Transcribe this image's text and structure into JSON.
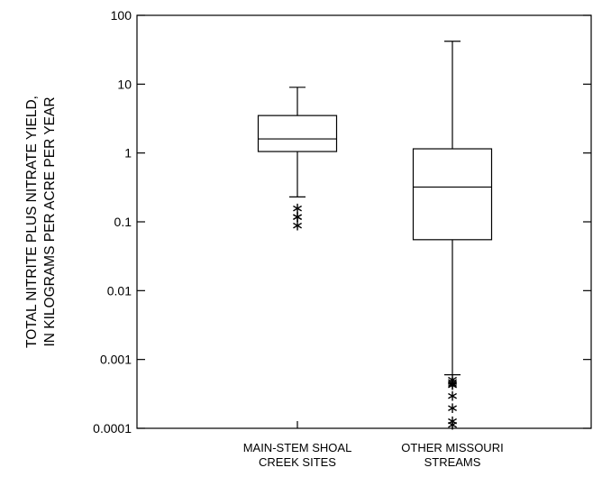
{
  "chart_data": {
    "type": "box",
    "ylabel_lines": [
      "TOTAL NITRITE PLUS NITRATE YIELD,",
      "IN KILOGRAMS PER ACRE PER YEAR"
    ],
    "yscale": "log",
    "ylim": [
      0.0001,
      100
    ],
    "yticks": [
      {
        "value": 100,
        "label": "100"
      },
      {
        "value": 10,
        "label": "10"
      },
      {
        "value": 1,
        "label": "1"
      },
      {
        "value": 0.1,
        "label": "0.1"
      },
      {
        "value": 0.01,
        "label": "0.01"
      },
      {
        "value": 0.001,
        "label": "0.001"
      },
      {
        "value": 0.0001,
        "label": "0.0001"
      }
    ],
    "grid": false,
    "categories": [
      {
        "lines": [
          "MAIN-STEM SHOAL",
          "CREEK SITES"
        ]
      },
      {
        "lines": [
          "OTHER MISSOURI",
          "STREAMS"
        ]
      }
    ],
    "boxes": [
      {
        "whisker_low": 0.23,
        "q1": 1.05,
        "median": 1.6,
        "q3": 3.5,
        "whisker_high": 9,
        "outliers": [
          0.16,
          0.12,
          0.12,
          0.09
        ]
      },
      {
        "whisker_low": 0.0006,
        "q1": 0.055,
        "median": 0.32,
        "q3": 1.15,
        "whisker_high": 42,
        "outliers": [
          0.00052,
          0.00048,
          0.00045,
          0.00043,
          0.0003,
          0.0002,
          0.00013,
          0.000115
        ]
      }
    ]
  }
}
